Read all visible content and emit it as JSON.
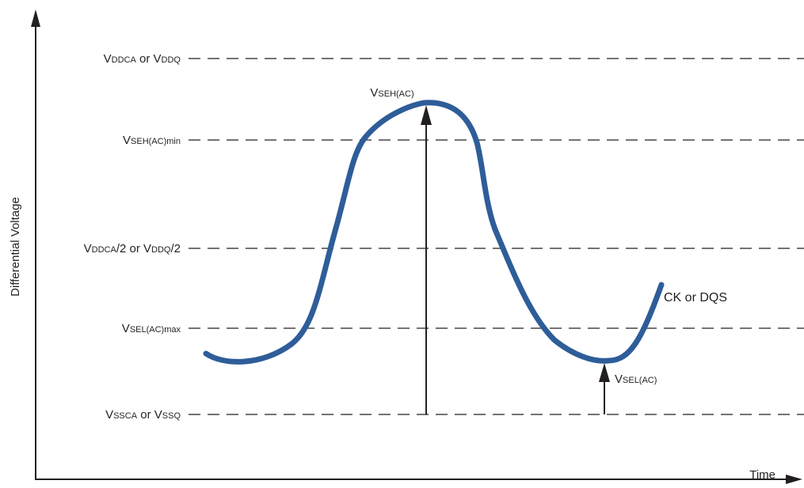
{
  "axes": {
    "y_title": "Differential Voltage",
    "x_title": "Time"
  },
  "levels": [
    {
      "id": "vdd",
      "parts": [
        {
          "t": "V",
          "s": "big"
        },
        {
          "t": "DDCA",
          "s": "small"
        },
        {
          "t": " or ",
          "s": "big"
        },
        {
          "t": "V",
          "s": "big"
        },
        {
          "t": "DDQ",
          "s": "small"
        }
      ]
    },
    {
      "id": "vseh-min",
      "parts": [
        {
          "t": "V",
          "s": "big"
        },
        {
          "t": "SEH(AC)min",
          "s": "small"
        }
      ]
    },
    {
      "id": "vdd-half",
      "parts": [
        {
          "t": "V",
          "s": "big"
        },
        {
          "t": "DDCA",
          "s": "small"
        },
        {
          "t": "/2 or ",
          "s": "big"
        },
        {
          "t": "V",
          "s": "big"
        },
        {
          "t": "DDQ",
          "s": "small"
        },
        {
          "t": "/2",
          "s": "big"
        }
      ]
    },
    {
      "id": "vsel-max",
      "parts": [
        {
          "t": "V",
          "s": "big"
        },
        {
          "t": "SEL(AC)max",
          "s": "small"
        }
      ]
    },
    {
      "id": "vss",
      "parts": [
        {
          "t": "V",
          "s": "big"
        },
        {
          "t": "SSCA",
          "s": "small"
        },
        {
          "t": " or ",
          "s": "big"
        },
        {
          "t": "V",
          "s": "big"
        },
        {
          "t": "SSQ",
          "s": "small"
        }
      ]
    }
  ],
  "annotations": {
    "vseh_ac": [
      {
        "t": "V",
        "s": "big"
      },
      {
        "t": "SEH(AC)",
        "s": "small"
      }
    ],
    "vsel_ac": [
      {
        "t": "V",
        "s": "big"
      },
      {
        "t": "SEL(AC)",
        "s": "small"
      }
    ]
  },
  "signal": {
    "label": "CK or DQS",
    "color": "#2e5d99"
  },
  "colors": {
    "lines": "#231f20",
    "text": "#231f20"
  }
}
